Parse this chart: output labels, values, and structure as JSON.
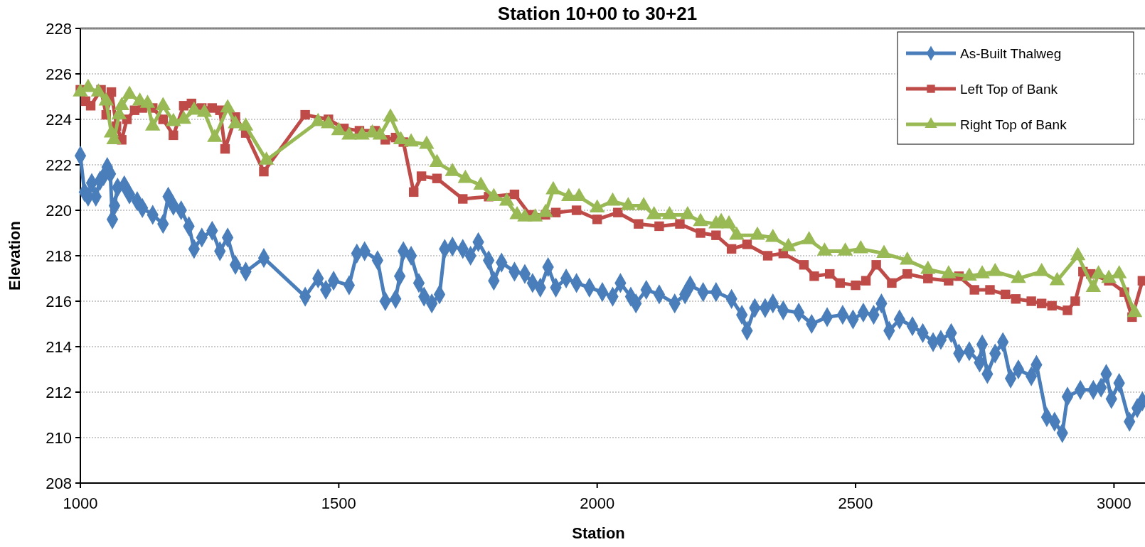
{
  "chart_data": {
    "type": "line",
    "title": "Station 10+00 to 30+21",
    "xlabel": "Station",
    "ylabel": "Elevation",
    "xlim": [
      1000,
      3060
    ],
    "xticks": [
      1000,
      1500,
      2000,
      2500,
      3000
    ],
    "ylim": [
      208,
      228
    ],
    "yticks": [
      208,
      210,
      212,
      214,
      216,
      218,
      220,
      222,
      224,
      226,
      228
    ],
    "grid": "y",
    "legend": "top right",
    "line_style": "solid",
    "series": [
      {
        "name": "As-Built Thalweg",
        "color": "#4a7ebb",
        "marker": "diamond",
        "x": [
          1000,
          1008,
          1015,
          1022,
          1030,
          1038,
          1045,
          1052,
          1058,
          1062,
          1066,
          1072,
          1085,
          1095,
          1110,
          1120,
          1140,
          1160,
          1170,
          1180,
          1195,
          1210,
          1220,
          1235,
          1255,
          1270,
          1285,
          1300,
          1320,
          1355,
          1435,
          1460,
          1475,
          1490,
          1520,
          1535,
          1550,
          1575,
          1590,
          1610,
          1618,
          1625,
          1640,
          1655,
          1665,
          1680,
          1695,
          1705,
          1720,
          1740,
          1755,
          1770,
          1790,
          1800,
          1815,
          1840,
          1860,
          1875,
          1890,
          1905,
          1920,
          1940,
          1960,
          1985,
          2010,
          2030,
          2045,
          2065,
          2075,
          2095,
          2120,
          2150,
          2170,
          2180,
          2205,
          2230,
          2260,
          2280,
          2290,
          2305,
          2325,
          2340,
          2360,
          2390,
          2415,
          2445,
          2475,
          2495,
          2515,
          2535,
          2550,
          2565,
          2585,
          2610,
          2630,
          2650,
          2665,
          2685,
          2700,
          2720,
          2740,
          2745,
          2755,
          2770,
          2785,
          2800,
          2815,
          2840,
          2850,
          2870,
          2885,
          2900,
          2910,
          2935,
          2960,
          2975,
          2985,
          2995,
          3010,
          3030,
          3045,
          3055
        ],
        "values": [
          222.4,
          220.8,
          220.6,
          221.2,
          220.6,
          221.3,
          221.5,
          221.9,
          221.6,
          219.6,
          220.2,
          221.0,
          221.1,
          220.7,
          220.4,
          220.1,
          219.8,
          219.4,
          220.6,
          220.2,
          220.0,
          219.3,
          218.3,
          218.8,
          219.1,
          218.2,
          218.8,
          217.6,
          217.3,
          217.9,
          216.2,
          217.0,
          216.5,
          216.9,
          216.7,
          218.1,
          218.2,
          217.8,
          216.0,
          216.1,
          217.1,
          218.2,
          218.0,
          216.8,
          216.2,
          215.9,
          216.3,
          218.3,
          218.4,
          218.3,
          218.0,
          218.6,
          217.8,
          216.9,
          217.7,
          217.3,
          217.2,
          216.8,
          216.6,
          217.5,
          216.6,
          217.0,
          216.8,
          216.6,
          216.4,
          216.2,
          216.8,
          216.2,
          215.9,
          216.5,
          216.3,
          215.9,
          216.3,
          216.7,
          216.4,
          216.4,
          216.1,
          215.4,
          214.7,
          215.7,
          215.7,
          215.9,
          215.6,
          215.5,
          215.0,
          215.3,
          215.4,
          215.2,
          215.5,
          215.4,
          215.9,
          214.7,
          215.2,
          214.9,
          214.6,
          214.2,
          214.3,
          214.6,
          213.7,
          213.8,
          213.3,
          214.1,
          212.8,
          213.7,
          214.2,
          212.6,
          213.0,
          212.7,
          213.2,
          210.9,
          210.7,
          210.2,
          211.8,
          212.1,
          212.1,
          212.2,
          212.8,
          211.7,
          212.4,
          210.7,
          211.3,
          211.6
        ]
      },
      {
        "name": "Left Top of Bank",
        "color": "#be4b48",
        "marker": "square",
        "x": [
          1000,
          1010,
          1020,
          1040,
          1050,
          1060,
          1070,
          1080,
          1090,
          1105,
          1120,
          1140,
          1160,
          1180,
          1200,
          1215,
          1235,
          1255,
          1270,
          1280,
          1300,
          1320,
          1355,
          1435,
          1480,
          1510,
          1540,
          1570,
          1590,
          1610,
          1625,
          1645,
          1660,
          1690,
          1740,
          1790,
          1840,
          1870,
          1900,
          1920,
          1960,
          2000,
          2040,
          2080,
          2120,
          2160,
          2200,
          2230,
          2260,
          2290,
          2330,
          2360,
          2400,
          2420,
          2450,
          2470,
          2500,
          2520,
          2540,
          2570,
          2600,
          2640,
          2680,
          2700,
          2730,
          2760,
          2790,
          2810,
          2840,
          2860,
          2880,
          2910,
          2925,
          2940,
          2955,
          2990,
          3020,
          3035,
          3055
        ],
        "values": [
          225.3,
          224.8,
          224.6,
          225.3,
          224.2,
          225.2,
          223.7,
          223.1,
          224.0,
          224.4,
          224.5,
          224.5,
          224.0,
          223.3,
          224.6,
          224.7,
          224.5,
          224.5,
          224.4,
          222.7,
          224.1,
          223.4,
          221.7,
          224.2,
          224.0,
          223.6,
          223.5,
          223.5,
          223.1,
          223.2,
          223.0,
          220.8,
          221.5,
          221.4,
          220.5,
          220.6,
          220.7,
          219.8,
          219.8,
          219.9,
          220.0,
          219.6,
          219.9,
          219.4,
          219.3,
          219.4,
          219.0,
          218.9,
          218.3,
          218.5,
          218.0,
          218.1,
          217.6,
          217.1,
          217.2,
          216.8,
          216.7,
          216.9,
          217.6,
          216.8,
          217.2,
          217.0,
          216.9,
          217.1,
          216.5,
          216.5,
          216.3,
          216.1,
          216.0,
          215.9,
          215.8,
          215.6,
          216.0,
          217.3,
          217.2,
          216.9,
          216.4,
          215.3,
          216.9
        ]
      },
      {
        "name": "Right Top of Bank",
        "color": "#98b954",
        "marker": "triangle",
        "x": [
          1000,
          1015,
          1035,
          1050,
          1060,
          1065,
          1075,
          1080,
          1095,
          1115,
          1130,
          1140,
          1160,
          1180,
          1200,
          1220,
          1240,
          1260,
          1285,
          1300,
          1320,
          1360,
          1460,
          1480,
          1500,
          1520,
          1545,
          1565,
          1580,
          1600,
          1620,
          1640,
          1670,
          1690,
          1720,
          1745,
          1775,
          1800,
          1825,
          1845,
          1860,
          1880,
          1900,
          1915,
          1945,
          1965,
          2000,
          2030,
          2060,
          2090,
          2110,
          2140,
          2175,
          2200,
          2230,
          2240,
          2255,
          2270,
          2310,
          2340,
          2370,
          2410,
          2440,
          2480,
          2510,
          2555,
          2600,
          2640,
          2680,
          2720,
          2745,
          2770,
          2815,
          2860,
          2890,
          2930,
          2960,
          2970,
          2990,
          3010,
          3040
        ],
        "values": [
          225.2,
          225.4,
          225.2,
          224.8,
          223.4,
          223.1,
          224.2,
          224.6,
          225.1,
          224.8,
          224.7,
          223.7,
          224.6,
          223.9,
          224.0,
          224.4,
          224.3,
          223.2,
          224.5,
          223.8,
          223.7,
          222.2,
          223.9,
          223.8,
          223.5,
          223.3,
          223.3,
          223.4,
          223.3,
          224.1,
          223.1,
          223.0,
          222.9,
          222.1,
          221.7,
          221.4,
          221.1,
          220.6,
          220.4,
          219.8,
          219.7,
          219.7,
          219.9,
          220.9,
          220.6,
          220.6,
          220.1,
          220.4,
          220.2,
          220.2,
          219.8,
          219.8,
          219.8,
          219.5,
          219.4,
          219.5,
          219.4,
          218.9,
          218.9,
          218.8,
          218.4,
          218.7,
          218.2,
          218.2,
          218.3,
          218.1,
          217.8,
          217.4,
          217.2,
          217.1,
          217.2,
          217.3,
          217.0,
          217.3,
          216.9,
          218.0,
          216.6,
          217.2,
          217.0,
          217.2,
          215.5
        ]
      }
    ]
  }
}
